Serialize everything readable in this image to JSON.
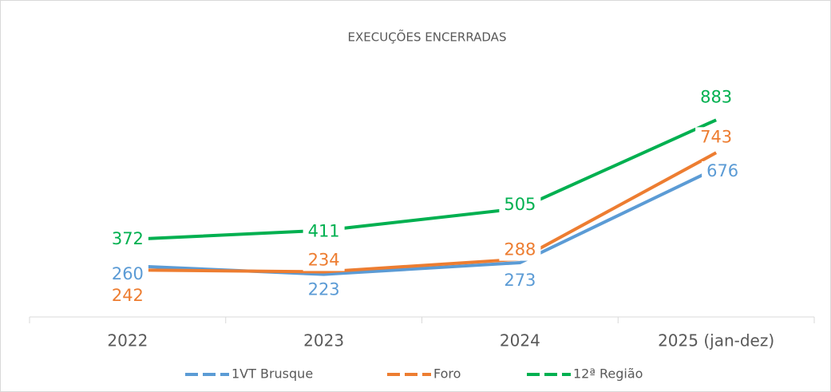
{
  "chart_data": {
    "type": "line",
    "title": "EXECUÇÕES ENCERRADAS",
    "categories": [
      "2022",
      "2023",
      "2024",
      "2025 (jan-dez)"
    ],
    "series": [
      {
        "name": "1VT Brusque",
        "color": "#5b9bd5",
        "values": [
          260,
          223,
          273,
          676
        ]
      },
      {
        "name": "Foro",
        "color": "#ed7d31",
        "values": [
          242,
          234,
          288,
          743
        ]
      },
      {
        "name": "12ª Região",
        "color": "#00b050",
        "values": [
          372,
          411,
          505,
          883
        ]
      }
    ],
    "ylim": [
      0,
      1000
    ],
    "legend": "bottom"
  }
}
